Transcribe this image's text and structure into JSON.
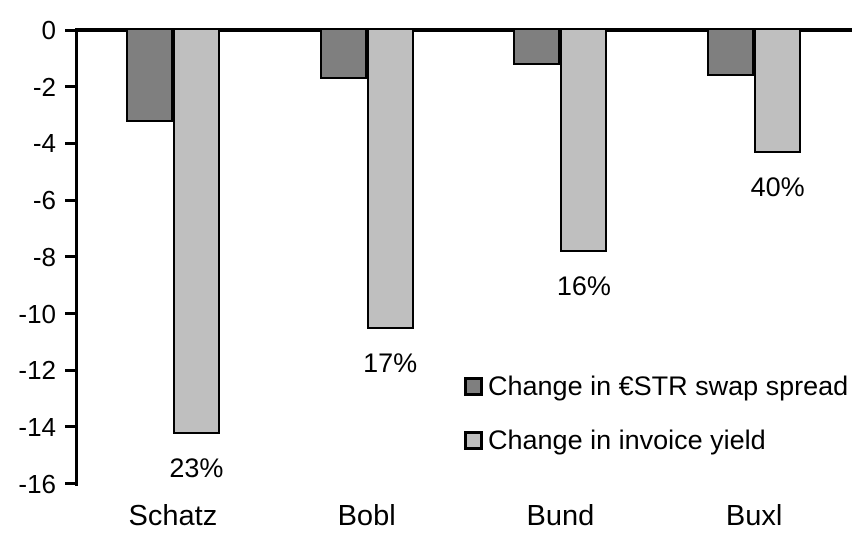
{
  "chart_data": {
    "type": "bar",
    "title": "",
    "xlabel": "",
    "ylabel": "",
    "grid": false,
    "background_color": "#ffffff",
    "axis_color": "#000000",
    "bar_outline_color": "#000000",
    "categories": [
      "Schatz",
      "Bobl",
      "Bund",
      "Buxl"
    ],
    "series": [
      {
        "name": "Change in €STR swap spread",
        "color": "#7f7f7f",
        "values": [
          -3.2,
          -1.7,
          -1.2,
          -1.6
        ]
      },
      {
        "name": "Change in invoice yield",
        "color": "#bfbfbf",
        "values": [
          -14.2,
          -10.5,
          -7.8,
          -4.3
        ],
        "point_labels": [
          "23%",
          "17%",
          "16%",
          "40%"
        ]
      }
    ],
    "y_axis": {
      "min": -16,
      "max": 0,
      "tick_step": 2,
      "tick_labels": [
        "0",
        "-2",
        "-4",
        "-6",
        "-8",
        "-10",
        "-12",
        "-14",
        "-16"
      ]
    },
    "legend_position": "inside-right"
  }
}
